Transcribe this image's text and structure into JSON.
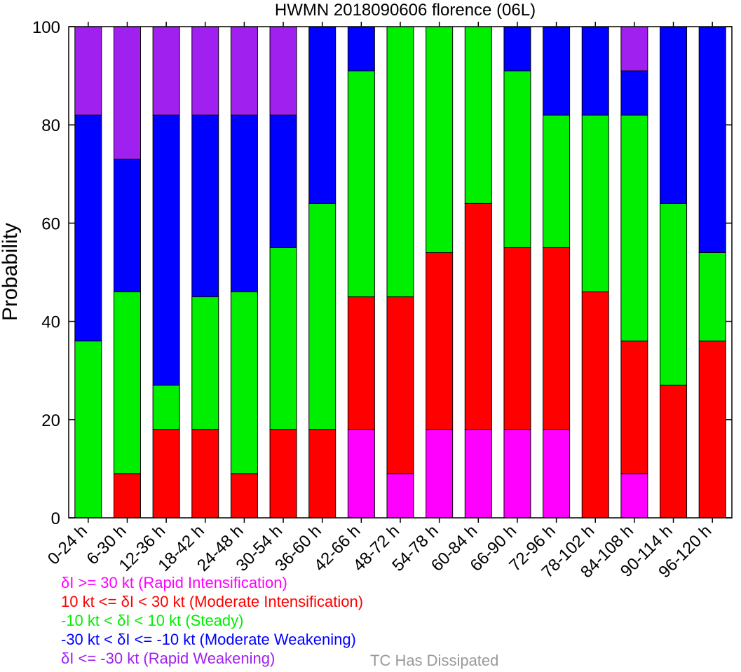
{
  "chart_data": {
    "type": "bar",
    "stacked": true,
    "title": "HWMN 2018090606 florence (06L)",
    "ylabel": "Probability",
    "xlabel": "",
    "ylim": [
      0,
      100
    ],
    "yticks": [
      0,
      20,
      40,
      60,
      80,
      100
    ],
    "grid": false,
    "categories": [
      "0-24 h",
      "6-30 h",
      "12-36 h",
      "18-42 h",
      "24-48 h",
      "30-54 h",
      "36-60 h",
      "42-66 h",
      "48-72 h",
      "54-78 h",
      "60-84 h",
      "66-90 h",
      "72-96 h",
      "78-102 h",
      "84-108 h",
      "90-114 h",
      "96-120 h"
    ],
    "series": [
      {
        "color": "#ff00ff",
        "values": [
          0,
          0,
          0,
          0,
          0,
          0,
          0,
          18,
          9,
          18,
          18,
          18,
          18,
          0,
          9,
          0,
          0
        ]
      },
      {
        "color": "#ff0000",
        "values": [
          0,
          9,
          18,
          18,
          9,
          18,
          18,
          27,
          36,
          36,
          46,
          37,
          37,
          46,
          27,
          27,
          36
        ]
      },
      {
        "color": "#00ee00",
        "values": [
          36,
          37,
          9,
          27,
          37,
          37,
          46,
          46,
          55,
          46,
          36,
          36,
          27,
          36,
          46,
          37,
          18
        ]
      },
      {
        "color": "#0000ff",
        "values": [
          46,
          27,
          55,
          37,
          36,
          27,
          36,
          9,
          0,
          0,
          0,
          9,
          18,
          18,
          9,
          36,
          46
        ]
      },
      {
        "color": "#a020f0",
        "values": [
          18,
          27,
          18,
          18,
          18,
          18,
          0,
          0,
          0,
          0,
          0,
          0,
          0,
          0,
          9,
          0,
          0
        ]
      }
    ]
  },
  "legend": {
    "rapid_intensification": {
      "text": "δI >= 30 kt (Rapid Intensification)",
      "color": "#ff00ff"
    },
    "moderate_intensification": {
      "text": "10 kt <= δI < 30 kt (Moderate Intensification)",
      "color": "#ff0000"
    },
    "steady": {
      "text": "-10 kt < δI < 10 kt (Steady)",
      "color": "#00ee00"
    },
    "moderate_weakening": {
      "text": "-30 kt < δI <= -10 kt (Moderate Weakening)",
      "color": "#0000ff"
    },
    "rapid_weakening": {
      "text": "δI <= -30 kt (Rapid Weakening)",
      "color": "#a020f0"
    },
    "dissipated": {
      "text": "TC Has Dissipated",
      "color": "#999999"
    }
  }
}
